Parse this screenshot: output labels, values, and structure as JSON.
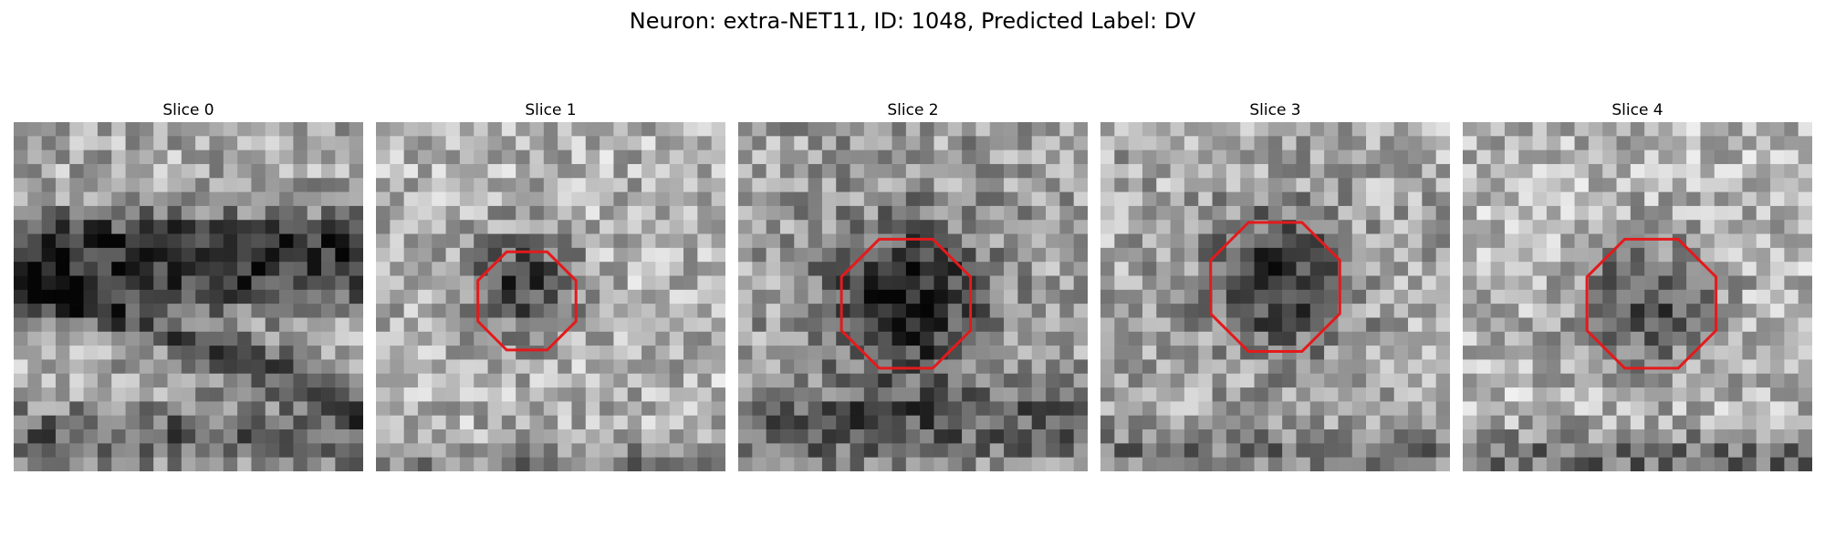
{
  "figure": {
    "title": "Neuron: extra-NET11, ID: 1048, Predicted Label: DV"
  },
  "colors": {
    "roi_outline": "#e31a1c",
    "background": "#ffffff"
  },
  "panels": [
    {
      "title": "Slice 0",
      "has_roi": false
    },
    {
      "title": "Slice 1",
      "has_roi": true
    },
    {
      "title": "Slice 2",
      "has_roi": true
    },
    {
      "title": "Slice 3",
      "has_roi": true
    },
    {
      "title": "Slice 4",
      "has_roi": true
    }
  ]
}
